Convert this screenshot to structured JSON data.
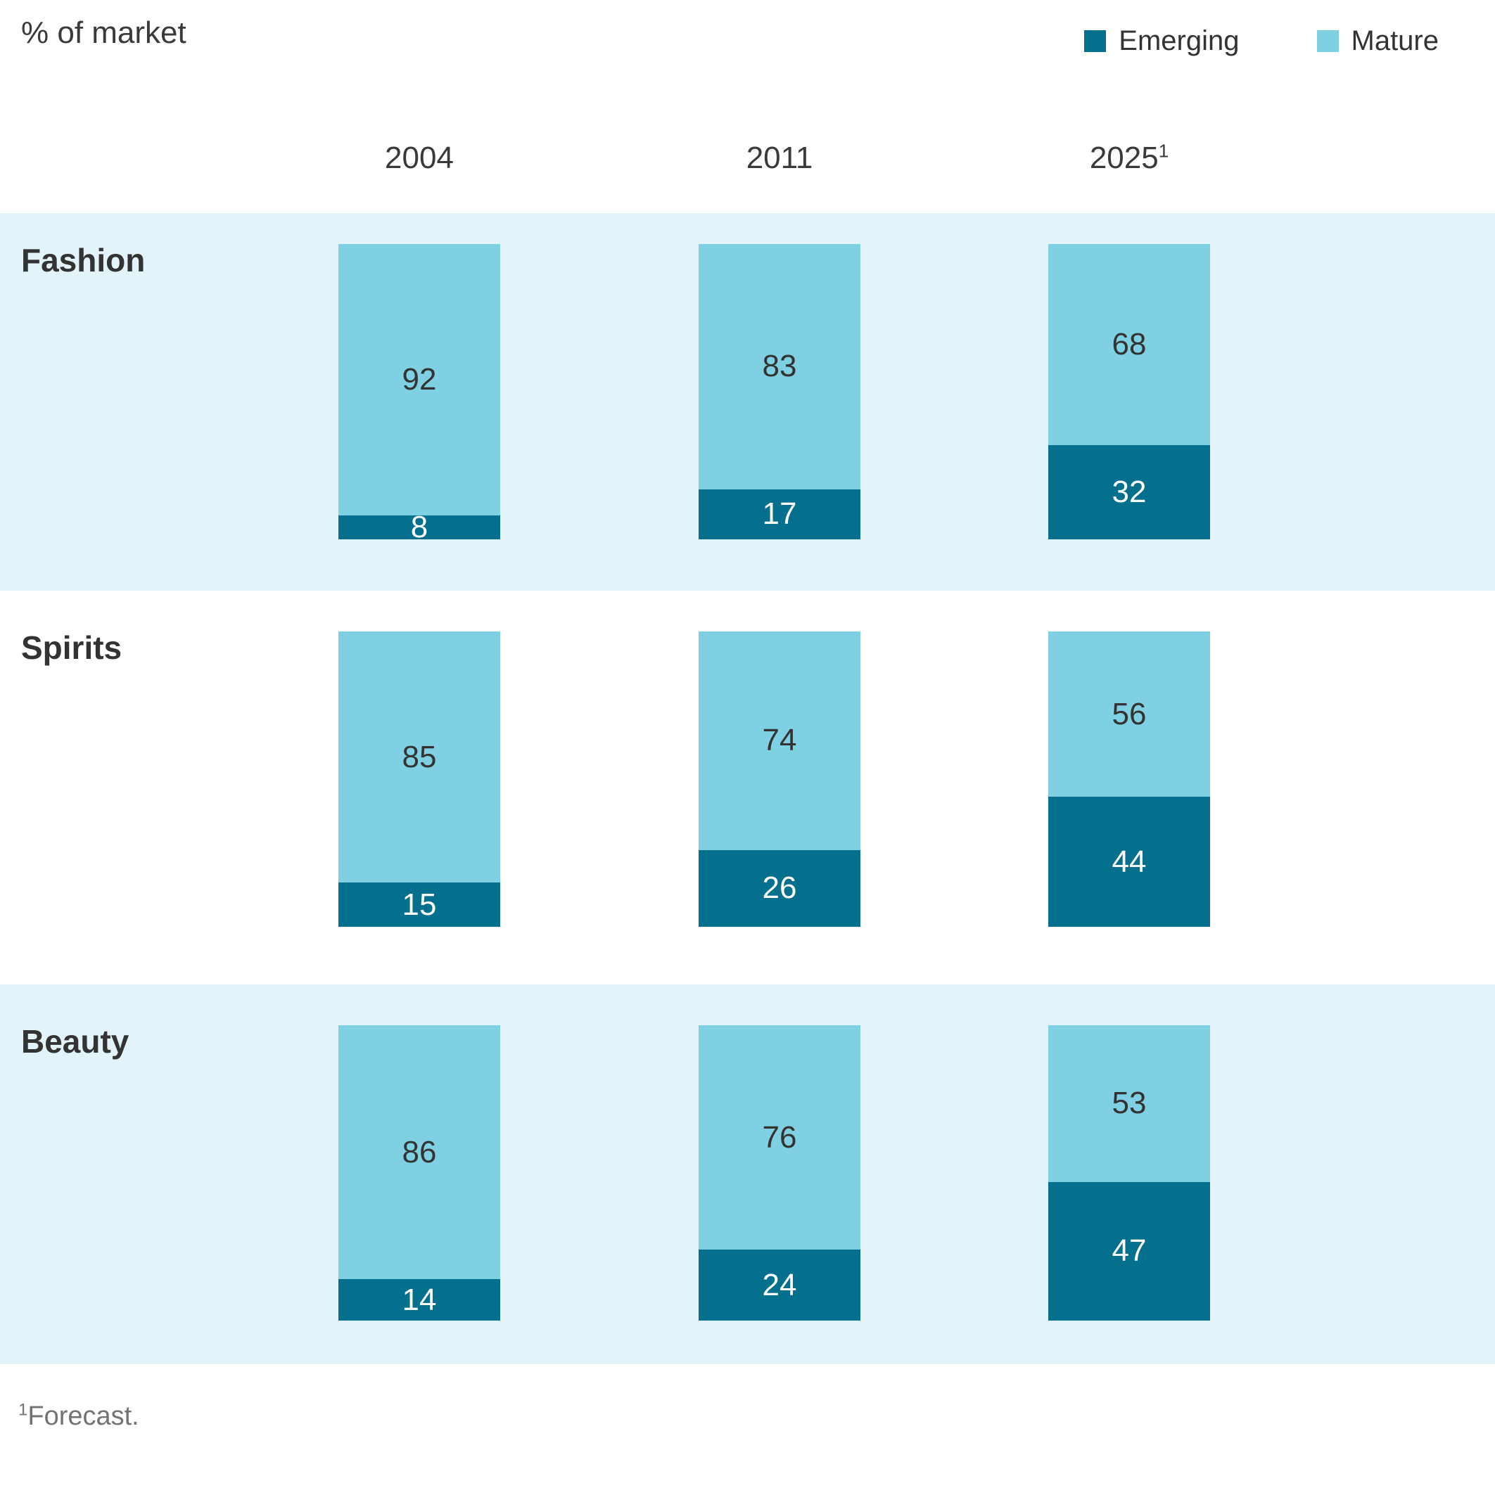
{
  "header": {
    "title": "% of market",
    "legend": [
      {
        "label": "Emerging",
        "color": "#05708e"
      },
      {
        "label": "Mature",
        "color": "#7fd0e2"
      }
    ]
  },
  "columns": [
    {
      "label": "2004",
      "sup": ""
    },
    {
      "label": "2011",
      "sup": ""
    },
    {
      "label": "2025",
      "sup": "1"
    }
  ],
  "chart_data": {
    "type": "bar",
    "stacked": true,
    "title": "% of market",
    "categories": [
      "2004",
      "2011",
      "2025"
    ],
    "series_names": [
      "Emerging",
      "Mature"
    ],
    "ylim": [
      0,
      100
    ],
    "legend_position": "top-right",
    "grid": false,
    "rows": [
      {
        "label": "Fashion",
        "bars": [
          {
            "mature": 92,
            "emerging": 8
          },
          {
            "mature": 83,
            "emerging": 17
          },
          {
            "mature": 68,
            "emerging": 32
          }
        ]
      },
      {
        "label": "Spirits",
        "bars": [
          {
            "mature": 85,
            "emerging": 15
          },
          {
            "mature": 74,
            "emerging": 26
          },
          {
            "mature": 56,
            "emerging": 44
          }
        ]
      },
      {
        "label": "Beauty",
        "bars": [
          {
            "mature": 86,
            "emerging": 14
          },
          {
            "mature": 76,
            "emerging": 24
          },
          {
            "mature": 53,
            "emerging": 47
          }
        ]
      }
    ]
  },
  "footnote": {
    "superscript": "1",
    "text": "Forecast."
  },
  "colors": {
    "emerging": "#05708e",
    "mature": "#7fd0e2",
    "band_bg": "#e2f4f9",
    "text_dark": "#333333",
    "footnote_gray": "#737373"
  }
}
